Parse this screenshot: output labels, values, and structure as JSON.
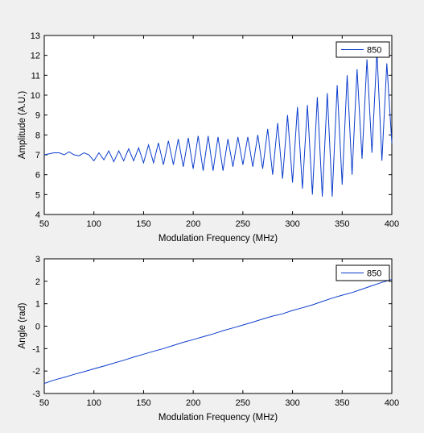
{
  "colors": {
    "figure_bg": "#f0f0f0",
    "axes_bg": "#ffffff",
    "line": "#0b3dcc",
    "axis": "#000000"
  },
  "chart_data": [
    {
      "type": "line",
      "xlabel": "Modulation Frequency (MHz)",
      "ylabel": "Amplitude (A.U.)",
      "xlim": [
        50,
        400
      ],
      "ylim": [
        4,
        13
      ],
      "xticks": [
        50,
        100,
        150,
        200,
        250,
        300,
        350,
        400
      ],
      "yticks": [
        4,
        5,
        6,
        7,
        8,
        9,
        10,
        11,
        12,
        13
      ],
      "grid": false,
      "legend": "top-right",
      "series": [
        {
          "name": "850",
          "x": [
            50,
            55,
            60,
            65,
            70,
            75,
            80,
            85,
            90,
            95,
            100,
            105,
            110,
            115,
            120,
            125,
            130,
            135,
            140,
            145,
            150,
            155,
            160,
            165,
            170,
            175,
            180,
            185,
            190,
            195,
            200,
            205,
            210,
            215,
            220,
            225,
            230,
            235,
            240,
            245,
            250,
            255,
            260,
            265,
            270,
            275,
            280,
            285,
            290,
            295,
            300,
            305,
            310,
            315,
            320,
            325,
            330,
            335,
            340,
            345,
            350,
            355,
            360,
            365,
            370,
            375,
            380,
            385,
            390,
            395,
            400
          ],
          "values": [
            7.0,
            7.05,
            7.1,
            7.1,
            7.0,
            7.15,
            7.0,
            6.95,
            7.1,
            7.0,
            6.7,
            7.1,
            6.75,
            7.2,
            6.65,
            7.2,
            6.7,
            7.3,
            6.7,
            7.35,
            6.6,
            7.5,
            6.6,
            7.6,
            6.5,
            7.7,
            6.5,
            7.8,
            6.4,
            7.85,
            6.3,
            7.95,
            6.2,
            7.95,
            6.2,
            7.9,
            6.2,
            7.8,
            6.4,
            7.9,
            6.5,
            7.9,
            6.4,
            8.0,
            6.3,
            8.3,
            6.0,
            8.6,
            5.8,
            9.0,
            5.6,
            9.4,
            5.3,
            9.5,
            5.0,
            9.9,
            4.9,
            10.1,
            4.9,
            10.5,
            5.5,
            11.0,
            6.0,
            11.3,
            6.8,
            11.8,
            7.1,
            12.2,
            6.7,
            11.6,
            7.6
          ]
        }
      ]
    },
    {
      "type": "line",
      "xlabel": "Modulation Frequency (MHz)",
      "ylabel": "Angle (rad)",
      "xlim": [
        50,
        400
      ],
      "ylim": [
        -3,
        3
      ],
      "xticks": [
        50,
        100,
        150,
        200,
        250,
        300,
        350,
        400
      ],
      "yticks": [
        -3,
        -2,
        -1,
        0,
        1,
        2,
        3
      ],
      "grid": false,
      "legend": "top-right",
      "series": [
        {
          "name": "850",
          "x": [
            50,
            60,
            70,
            80,
            90,
            100,
            110,
            120,
            130,
            140,
            150,
            160,
            170,
            180,
            190,
            200,
            210,
            220,
            230,
            240,
            250,
            260,
            270,
            280,
            290,
            300,
            310,
            320,
            330,
            340,
            350,
            360,
            370,
            380,
            390,
            400
          ],
          "values": [
            -2.55,
            -2.4,
            -2.28,
            -2.15,
            -2.03,
            -1.9,
            -1.78,
            -1.65,
            -1.52,
            -1.38,
            -1.25,
            -1.12,
            -1.0,
            -0.86,
            -0.72,
            -0.6,
            -0.47,
            -0.35,
            -0.2,
            -0.08,
            0.05,
            0.18,
            0.32,
            0.45,
            0.55,
            0.7,
            0.82,
            0.95,
            1.1,
            1.25,
            1.38,
            1.5,
            1.65,
            1.8,
            1.95,
            2.08
          ]
        }
      ]
    }
  ]
}
